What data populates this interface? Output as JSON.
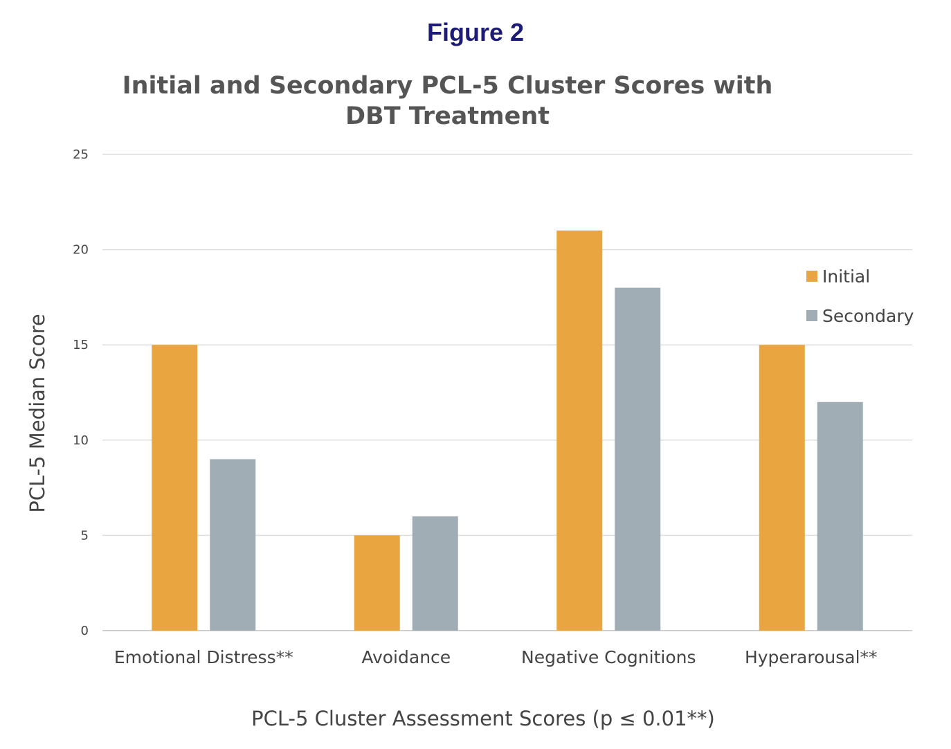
{
  "figure_label": "Figure 2",
  "chart_data": {
    "type": "bar",
    "title": "Initial and Secondary PCL-5  Cluster Scores with DBT Treatment",
    "xlabel": "PCL-5 Cluster Assessment Scores (p ≤ 0.01**)",
    "ylabel": "PCL-5 Median Score",
    "categories": [
      "Emotional Distress**",
      "Avoidance",
      "Negative Cognitions",
      "Hyperarousal**"
    ],
    "series": [
      {
        "name": "Initial",
        "color": "#E9A640",
        "values": [
          15,
          5,
          21,
          15
        ]
      },
      {
        "name": "Secondary",
        "color": "#A0ADB4",
        "values": [
          9,
          6,
          18,
          12
        ]
      }
    ],
    "ylim": [
      0,
      25
    ],
    "yticks": [
      0,
      5,
      10,
      15,
      20,
      25
    ],
    "grid": true,
    "legend_position": "right"
  }
}
